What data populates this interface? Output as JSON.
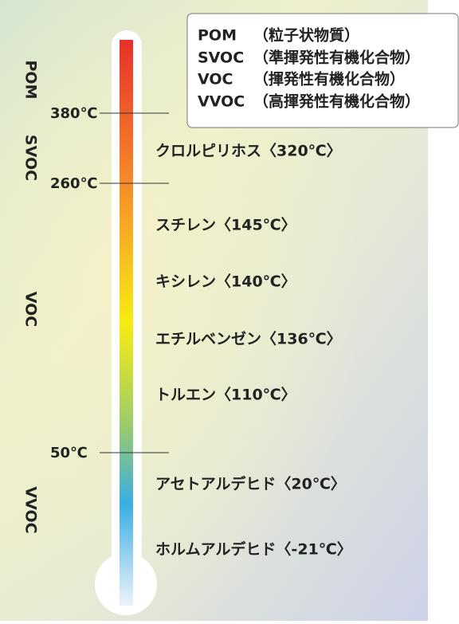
{
  "legend": [
    {
      "abbr": "POM",
      "desc": "（粒子状物質）"
    },
    {
      "abbr": "SVOC",
      "desc": "（準揮発性有機化合物）"
    },
    {
      "abbr": "VOC",
      "desc": "（揮発性有機化合物）"
    },
    {
      "abbr": "VVOC",
      "desc": "（高揮発性有機化合物）"
    }
  ],
  "ranges": [
    "POM",
    "SVOC",
    "VOC",
    "VVOC"
  ],
  "thresholds": [
    "380℃",
    "260℃",
    "50℃"
  ],
  "compounds": [
    "クロルピリホス〈320℃〉",
    "スチレン〈145℃〉",
    "キシレン〈140℃〉",
    "エチルベンゼン〈136℃〉",
    "トルエン〈110℃〉",
    "アセトアルデヒド〈20℃〉",
    "ホルムアルデヒド〈-21℃〉"
  ]
}
